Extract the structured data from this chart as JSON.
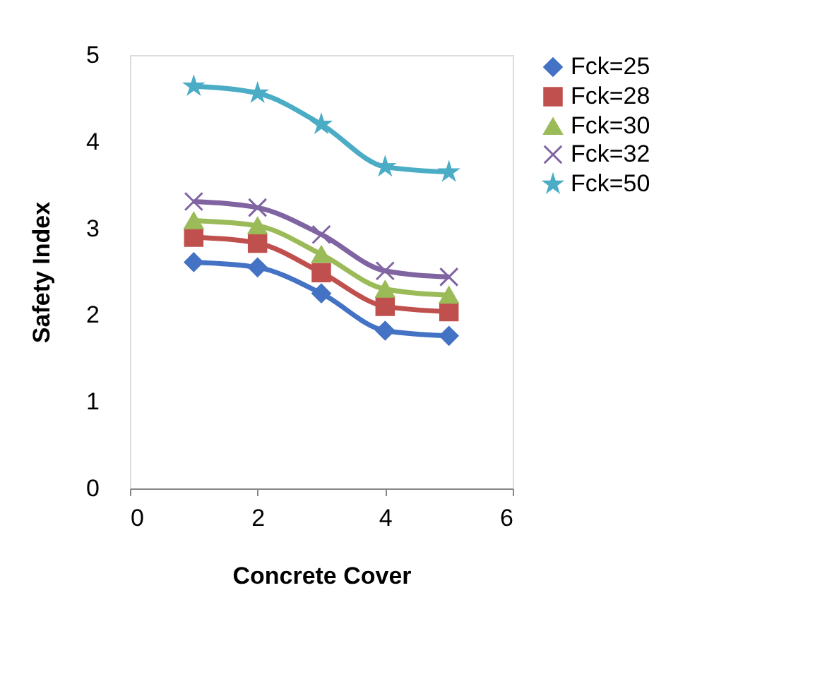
{
  "chart_data": {
    "type": "line",
    "xlabel": "Concrete Cover",
    "ylabel": "Safety Index",
    "x": [
      1,
      2,
      3,
      4,
      5
    ],
    "series": [
      {
        "name": "Fck=25",
        "color": "#4472c4",
        "marker": "diamond",
        "values": [
          2.61,
          2.55,
          2.25,
          1.82,
          1.76
        ]
      },
      {
        "name": "Fck=28",
        "color": "#c0504d",
        "marker": "square",
        "values": [
          2.9,
          2.83,
          2.49,
          2.1,
          2.04
        ]
      },
      {
        "name": "Fck=30",
        "color": "#9bbb59",
        "marker": "triangle",
        "values": [
          3.09,
          3.03,
          2.7,
          2.3,
          2.23
        ]
      },
      {
        "name": "Fck=32",
        "color": "#8064a2",
        "marker": "cross",
        "values": [
          3.31,
          3.24,
          2.93,
          2.51,
          2.44
        ]
      },
      {
        "name": "Fck=50",
        "color": "#4bacc6",
        "marker": "star",
        "values": [
          4.64,
          4.56,
          4.2,
          3.71,
          3.65
        ]
      }
    ],
    "xlim": [
      0,
      6
    ],
    "xticks": [
      0,
      2,
      4,
      6
    ],
    "ylim": [
      0,
      5
    ],
    "yticks": [
      0,
      1,
      2,
      3,
      4,
      5
    ],
    "grid": false,
    "legend": "right",
    "line_style": "solid"
  }
}
